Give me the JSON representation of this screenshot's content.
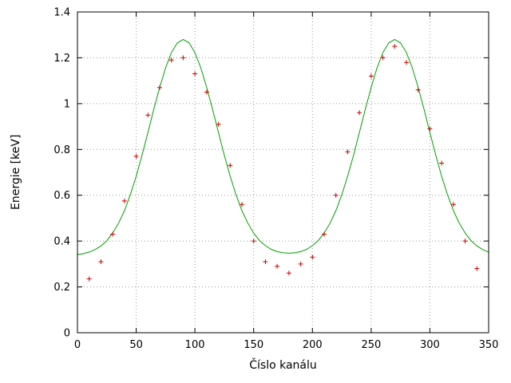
{
  "figure": {
    "background": "#ffffff"
  },
  "colors": {
    "background": "#ffffff",
    "border": "#000000",
    "text": "#000000",
    "grid": "#9a9a9a",
    "points": "#cc0000",
    "curve": "#00a000"
  },
  "chart_data": {
    "type": "scatter",
    "title": "",
    "xlabel": "Číslo kanálu",
    "ylabel": "Energie [keV]",
    "xlim": [
      0,
      350
    ],
    "ylim": [
      0,
      1.4
    ],
    "x_tick_values": [
      0,
      50,
      100,
      150,
      200,
      250,
      300,
      350
    ],
    "x_tick_labels": [
      "0",
      "50",
      "100",
      "150",
      "200",
      "250",
      "300",
      "350"
    ],
    "y_tick_values": [
      0,
      0.2,
      0.4,
      0.6,
      0.8,
      1,
      1.2,
      1.4
    ],
    "y_tick_labels": [
      "0",
      "0.2",
      "0.4",
      "0.6",
      "0.8",
      "1",
      "1.2",
      "1.4"
    ],
    "grid": "dotted",
    "legend": "none",
    "series": [
      {
        "name": "measured-points",
        "type": "scatter",
        "marker": "plus",
        "color": "#cc0000",
        "points": [
          [
            10,
            0.235
          ],
          [
            20,
            0.31
          ],
          [
            30,
            0.43
          ],
          [
            40,
            0.575
          ],
          [
            50,
            0.77
          ],
          [
            60,
            0.95
          ],
          [
            70,
            1.07
          ],
          [
            80,
            1.19
          ],
          [
            90,
            1.2
          ],
          [
            100,
            1.13
          ],
          [
            110,
            1.05
          ],
          [
            120,
            0.91
          ],
          [
            130,
            0.73
          ],
          [
            140,
            0.56
          ],
          [
            150,
            0.4
          ],
          [
            160,
            0.31
          ],
          [
            170,
            0.29
          ],
          [
            180,
            0.26
          ],
          [
            190,
            0.3
          ],
          [
            200,
            0.33
          ],
          [
            210,
            0.43
          ],
          [
            220,
            0.6
          ],
          [
            230,
            0.79
          ],
          [
            240,
            0.96
          ],
          [
            250,
            1.12
          ],
          [
            260,
            1.2
          ],
          [
            270,
            1.25
          ],
          [
            280,
            1.18
          ],
          [
            290,
            1.06
          ],
          [
            300,
            0.89
          ],
          [
            310,
            0.74
          ],
          [
            320,
            0.56
          ],
          [
            330,
            0.4
          ],
          [
            340,
            0.28
          ]
        ]
      },
      {
        "name": "fit-curve",
        "type": "line",
        "color": "#00a000",
        "points": [
          [
            0,
            0.341
          ],
          [
            5,
            0.345
          ],
          [
            10,
            0.352
          ],
          [
            15,
            0.363
          ],
          [
            20,
            0.379
          ],
          [
            25,
            0.402
          ],
          [
            30,
            0.435
          ],
          [
            35,
            0.478
          ],
          [
            40,
            0.533
          ],
          [
            45,
            0.602
          ],
          [
            50,
            0.683
          ],
          [
            55,
            0.775
          ],
          [
            60,
            0.874
          ],
          [
            65,
            0.975
          ],
          [
            70,
            1.071
          ],
          [
            75,
            1.156
          ],
          [
            80,
            1.223
          ],
          [
            85,
            1.265
          ],
          [
            90,
            1.28
          ],
          [
            95,
            1.265
          ],
          [
            100,
            1.223
          ],
          [
            105,
            1.156
          ],
          [
            110,
            1.071
          ],
          [
            115,
            0.975
          ],
          [
            120,
            0.874
          ],
          [
            125,
            0.775
          ],
          [
            130,
            0.683
          ],
          [
            135,
            0.602
          ],
          [
            140,
            0.533
          ],
          [
            145,
            0.478
          ],
          [
            150,
            0.435
          ],
          [
            155,
            0.402
          ],
          [
            160,
            0.38
          ],
          [
            165,
            0.364
          ],
          [
            170,
            0.354
          ],
          [
            175,
            0.349
          ],
          [
            180,
            0.347
          ],
          [
            185,
            0.349
          ],
          [
            190,
            0.354
          ],
          [
            195,
            0.364
          ],
          [
            200,
            0.38
          ],
          [
            205,
            0.402
          ],
          [
            210,
            0.435
          ],
          [
            215,
            0.478
          ],
          [
            220,
            0.533
          ],
          [
            225,
            0.602
          ],
          [
            230,
            0.683
          ],
          [
            235,
            0.775
          ],
          [
            240,
            0.874
          ],
          [
            245,
            0.975
          ],
          [
            250,
            1.071
          ],
          [
            255,
            1.156
          ],
          [
            260,
            1.223
          ],
          [
            265,
            1.265
          ],
          [
            270,
            1.28
          ],
          [
            275,
            1.265
          ],
          [
            280,
            1.223
          ],
          [
            285,
            1.156
          ],
          [
            290,
            1.071
          ],
          [
            295,
            0.975
          ],
          [
            300,
            0.874
          ],
          [
            305,
            0.775
          ],
          [
            310,
            0.683
          ],
          [
            315,
            0.602
          ],
          [
            320,
            0.533
          ],
          [
            325,
            0.478
          ],
          [
            330,
            0.435
          ],
          [
            335,
            0.402
          ],
          [
            340,
            0.379
          ],
          [
            345,
            0.363
          ],
          [
            350,
            0.352
          ]
        ]
      }
    ]
  }
}
